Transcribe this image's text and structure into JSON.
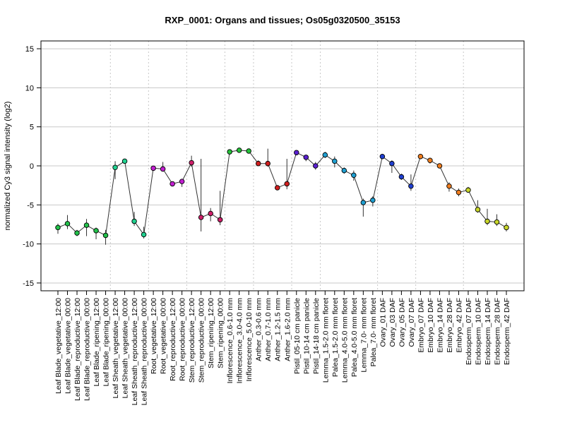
{
  "chart_data": {
    "type": "line",
    "title": "RXP_0001: Organs and tissues; Os05g0320500_35153",
    "xlabel": "",
    "ylabel": "normalized Cy3 signal intensity (log2)",
    "ylim": [
      -16,
      16
    ],
    "yticks": [
      -15,
      -10,
      -5,
      0,
      5,
      10,
      15
    ],
    "grid": true,
    "categories": [
      "Leaf Blade_vegetative_12:00",
      "Leaf Blade_vegetative_00:00",
      "Leaf Blade_reproductive_12:00",
      "Leaf Blade_reproductive_00:00",
      "Leaf Blade_ripening_12:00",
      "Leaf Blade_ripening_00:00",
      "Leaf Sheath_vegetative_12:00",
      "Leaf Sheath_vegetative_00:00",
      "Leaf Sheath_reproductive_12:00",
      "Leaf Sheath_reproductive_00:00",
      "Root_vegetative_12:00",
      "Root_vegetative_00:00",
      "Root_reproductive_12:00",
      "Root_reproductive_00:00",
      "Stem_reproductive_12:00",
      "Stem_reproductive_00:00",
      "Stem_ripening_12:00",
      "Stem_ripening_00:00",
      "Inflorescence_0.6-1.0 mm",
      "Inflorescence_3.0-4.0 mm",
      "Inflorescence_5.0-10 mm",
      "Anther_0.3-0.6 mm",
      "Anther_0.7-1.0 mm",
      "Anther_1.2-1.5 mm",
      "Anther_1.6-2.0 mm",
      "Pistil_05-10 cm panicle",
      "Pistil_10-14 cm panicle",
      "Pistil_14-18 cm panicle",
      "Lemma_1.5-2.0 mm floret",
      "Palea_1.5-2.0 mm floret",
      "Lemma_4.0-5.0 mm floret",
      "Palea_4.0-5.0 mm floret",
      "Lemma_7.0- mm floret",
      "Palea_7.0- mm floret",
      "Ovary_01 DAF",
      "Ovary_03 DAF",
      "Ovary_05 DAF",
      "Ovary_07 DAF",
      "Embryo_07 DAF",
      "Embryo_10 DAF",
      "Embryo_14 DAF",
      "Embryo_28 DAF",
      "Embryo_42 DAF",
      "Endosperm_07 DAF",
      "Endosperm_10 DAF",
      "Endosperm_14 DAF",
      "Endosperm_28 DAF",
      "Endosperm_42 DAF"
    ],
    "values": [
      -7.9,
      -7.4,
      -8.6,
      -7.6,
      -8.3,
      -8.9,
      -0.2,
      0.6,
      -7.1,
      -8.8,
      -0.3,
      -0.4,
      -2.3,
      -2.0,
      0.4,
      -6.6,
      -6.1,
      -6.9,
      1.8,
      2.0,
      1.9,
      0.3,
      0.3,
      -2.8,
      -2.3,
      1.7,
      1.1,
      0.0,
      1.4,
      0.6,
      -0.6,
      -1.2,
      -4.7,
      -4.4,
      1.2,
      0.3,
      -1.4,
      -2.6,
      1.2,
      0.7,
      0.0,
      -2.6,
      -3.4,
      -3.1,
      -5.6,
      -7.1,
      -7.2,
      -7.9
    ],
    "error_low": [
      -8.7,
      -8.1,
      -9.0,
      -9.0,
      -9.4,
      -10.1,
      -1.7,
      0.4,
      -7.7,
      -9.3,
      -0.6,
      -0.7,
      -2.5,
      -2.7,
      -0.1,
      -8.4,
      -7.1,
      -7.6,
      1.6,
      1.8,
      1.6,
      0.1,
      -0.1,
      -3.1,
      -3.0,
      1.4,
      0.6,
      -0.5,
      1.0,
      -0.2,
      -1.0,
      -1.9,
      -6.5,
      -5.2,
      1.0,
      -0.9,
      -1.8,
      -3.2,
      0.9,
      0.3,
      -0.3,
      -3.3,
      -3.9,
      -3.4,
      -6.0,
      -7.6,
      -7.7,
      -8.4
    ],
    "error_high": [
      -7.4,
      -6.3,
      -8.2,
      -6.8,
      -7.9,
      -8.2,
      0.6,
      0.9,
      -5.9,
      -7.8,
      0.0,
      0.5,
      -2.1,
      -1.7,
      1.3,
      0.9,
      -5.4,
      -3.2,
      2.0,
      2.2,
      2.1,
      0.7,
      2.2,
      -2.5,
      0.9,
      1.9,
      1.4,
      0.5,
      1.8,
      1.2,
      -0.2,
      -0.6,
      -4.2,
      -3.9,
      1.4,
      0.7,
      -1.0,
      -1.1,
      1.5,
      1.0,
      0.3,
      -2.1,
      -2.9,
      -2.7,
      -4.4,
      -5.5,
      -6.2,
      -7.3
    ],
    "point_colors": [
      "#22c14a",
      "#22c14a",
      "#22c14a",
      "#22c14a",
      "#22c14a",
      "#22c14a",
      "#1fd18f",
      "#1fd18f",
      "#1fd18f",
      "#1fd18f",
      "#c21fd1",
      "#c21fd1",
      "#c21fd1",
      "#c21fd1",
      "#cf1f6a",
      "#cf1f6a",
      "#cf1f6a",
      "#cf1f6a",
      "#25c23a",
      "#25c23a",
      "#25c23a",
      "#d11f1f",
      "#d11f1f",
      "#d11f1f",
      "#d11f1f",
      "#5a1fd1",
      "#5a1fd1",
      "#5a1fd1",
      "#1f9fd1",
      "#1f9fd1",
      "#1f9fd1",
      "#1f9fd1",
      "#1f9fd1",
      "#1f9fd1",
      "#1f3fd1",
      "#1f3fd1",
      "#1f3fd1",
      "#1f3fd1",
      "#ef7d1f",
      "#ef7d1f",
      "#ef7d1f",
      "#ef7d1f",
      "#ef7d1f",
      "#c8d62a",
      "#c8d62a",
      "#c8d62a",
      "#c8d62a",
      "#c8d62a"
    ],
    "group_separators_after": [
      5,
      9,
      13,
      17,
      20,
      24,
      27,
      33,
      37,
      42
    ]
  }
}
